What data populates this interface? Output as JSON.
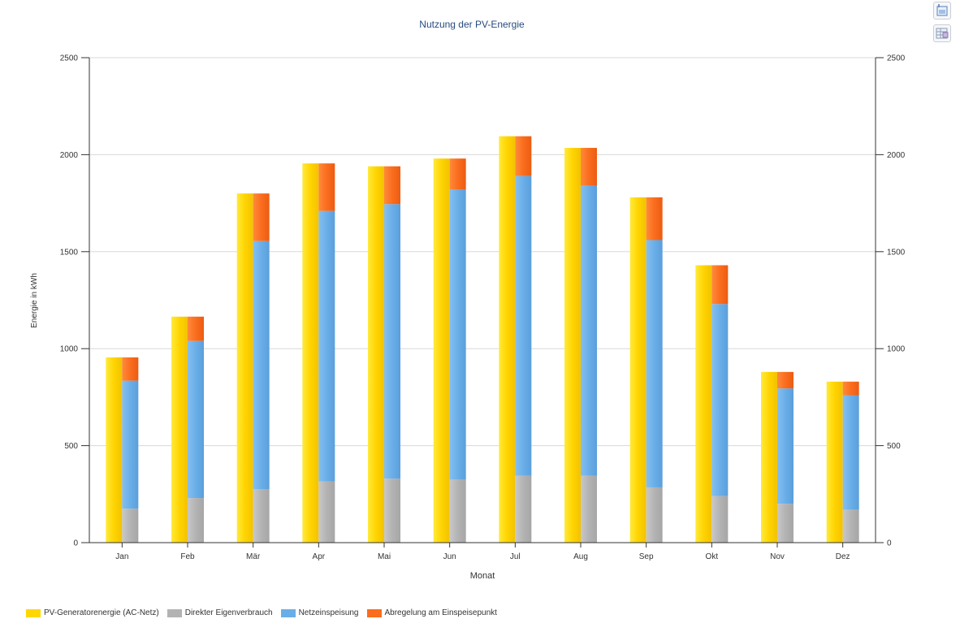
{
  "toolbar": {
    "export_icon": "export-image-icon",
    "table_icon": "data-table-icon"
  },
  "chart_data": {
    "type": "bar",
    "title": "Nutzung der PV-Energie",
    "xlabel": "Monat",
    "ylabel": "Energie in kWh",
    "ylim": [
      0,
      2500
    ],
    "yticks": [
      0,
      500,
      1000,
      1500,
      2000,
      2500
    ],
    "secondary_axis": "right, mirrors left axis",
    "grid": true,
    "legend_position": "bottom-left",
    "categories": [
      "Jan",
      "Feb",
      "Mär",
      "Apr",
      "Mai",
      "Jun",
      "Jul",
      "Aug",
      "Sep",
      "Okt",
      "Nov",
      "Dez"
    ],
    "series": [
      {
        "name": "PV-Generatorenergie (AC-Netz)",
        "color": "#ffd700",
        "stack": "generation",
        "values": [
          955,
          1165,
          1800,
          1955,
          1940,
          1980,
          2095,
          2035,
          1780,
          1430,
          880,
          830
        ]
      },
      {
        "name": "Direkter Eigenverbrauch",
        "color": "#b3b3b3",
        "stack": "usage",
        "values": [
          175,
          230,
          275,
          315,
          330,
          325,
          345,
          345,
          285,
          240,
          200,
          170
        ]
      },
      {
        "name": "Netzeinspeisung",
        "color": "#6aaee8",
        "stack": "usage",
        "values": [
          660,
          810,
          1280,
          1395,
          1415,
          1495,
          1545,
          1495,
          1275,
          990,
          595,
          590
        ]
      },
      {
        "name": "Abregelung am Einspeisepunkt",
        "color": "#fa6d1e",
        "stack": "usage",
        "values": [
          120,
          125,
          245,
          245,
          195,
          160,
          205,
          195,
          220,
          200,
          85,
          70
        ]
      }
    ]
  }
}
